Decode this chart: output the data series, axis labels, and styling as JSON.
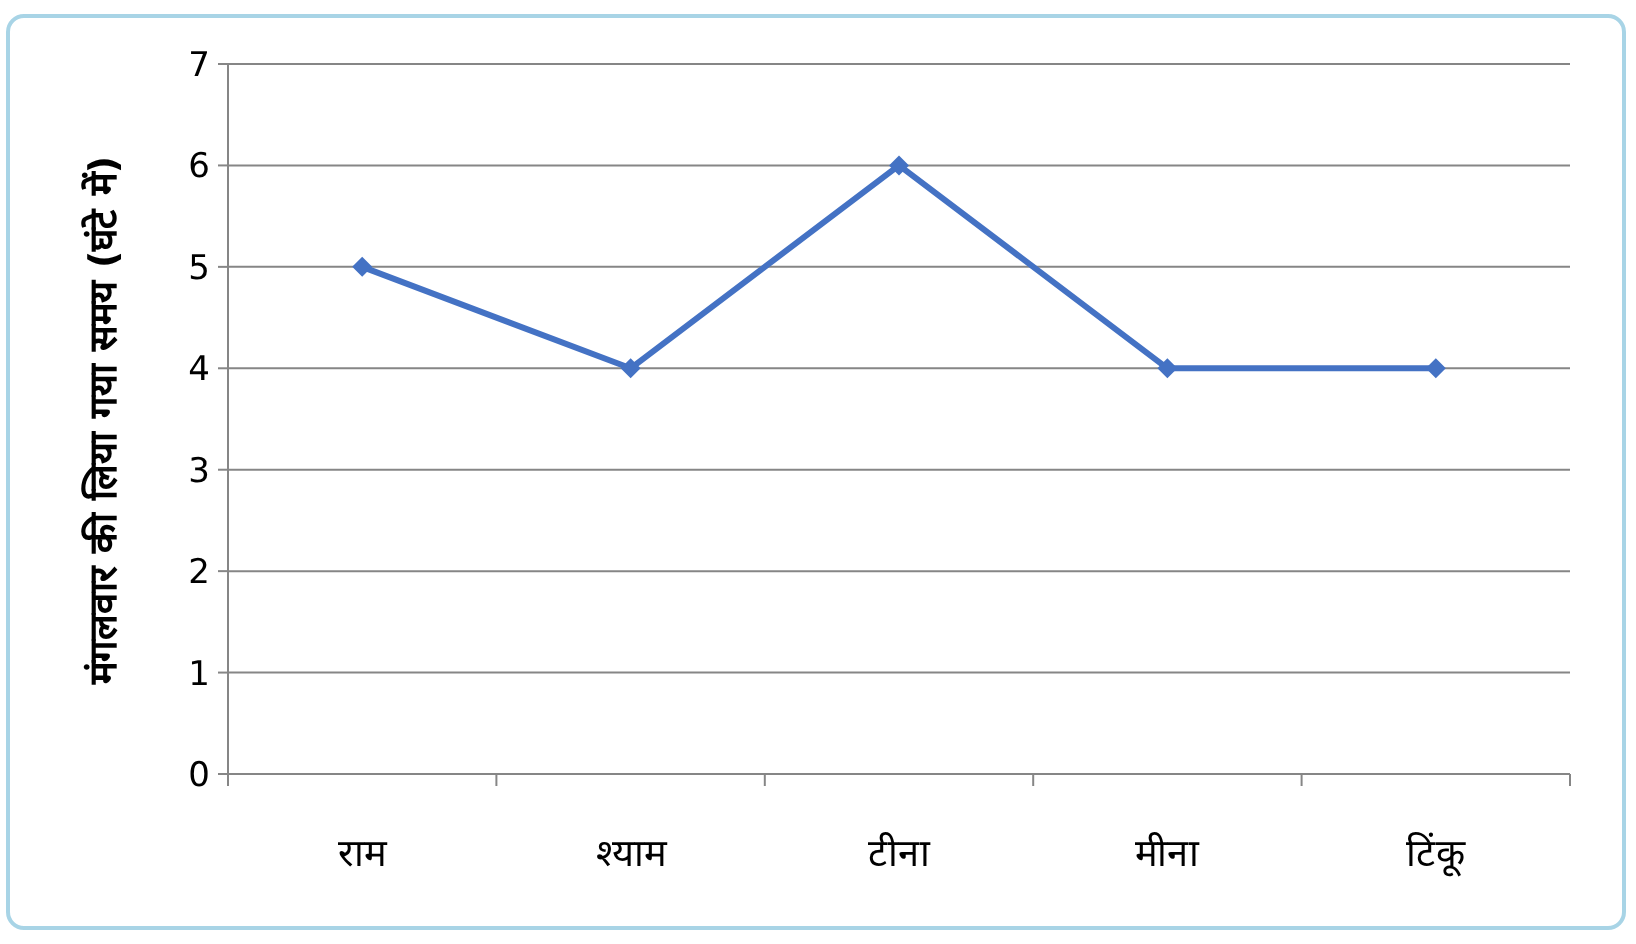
{
  "chart_data": {
    "type": "line",
    "ylabel": "मंगलवार की लिया गया समय (घंटे में)",
    "categories": [
      "राम",
      "श्याम",
      "टीना",
      "मीना",
      "टिंकू"
    ],
    "series": [
      {
        "color": "#4472c4",
        "values": [
          5,
          4,
          6,
          4,
          4
        ]
      }
    ],
    "ylim": [
      0,
      7
    ],
    "yticks": [
      0,
      1,
      2,
      3,
      4,
      5,
      6,
      7
    ],
    "grid": "y",
    "marker": "diamond",
    "line_style": "solid"
  }
}
